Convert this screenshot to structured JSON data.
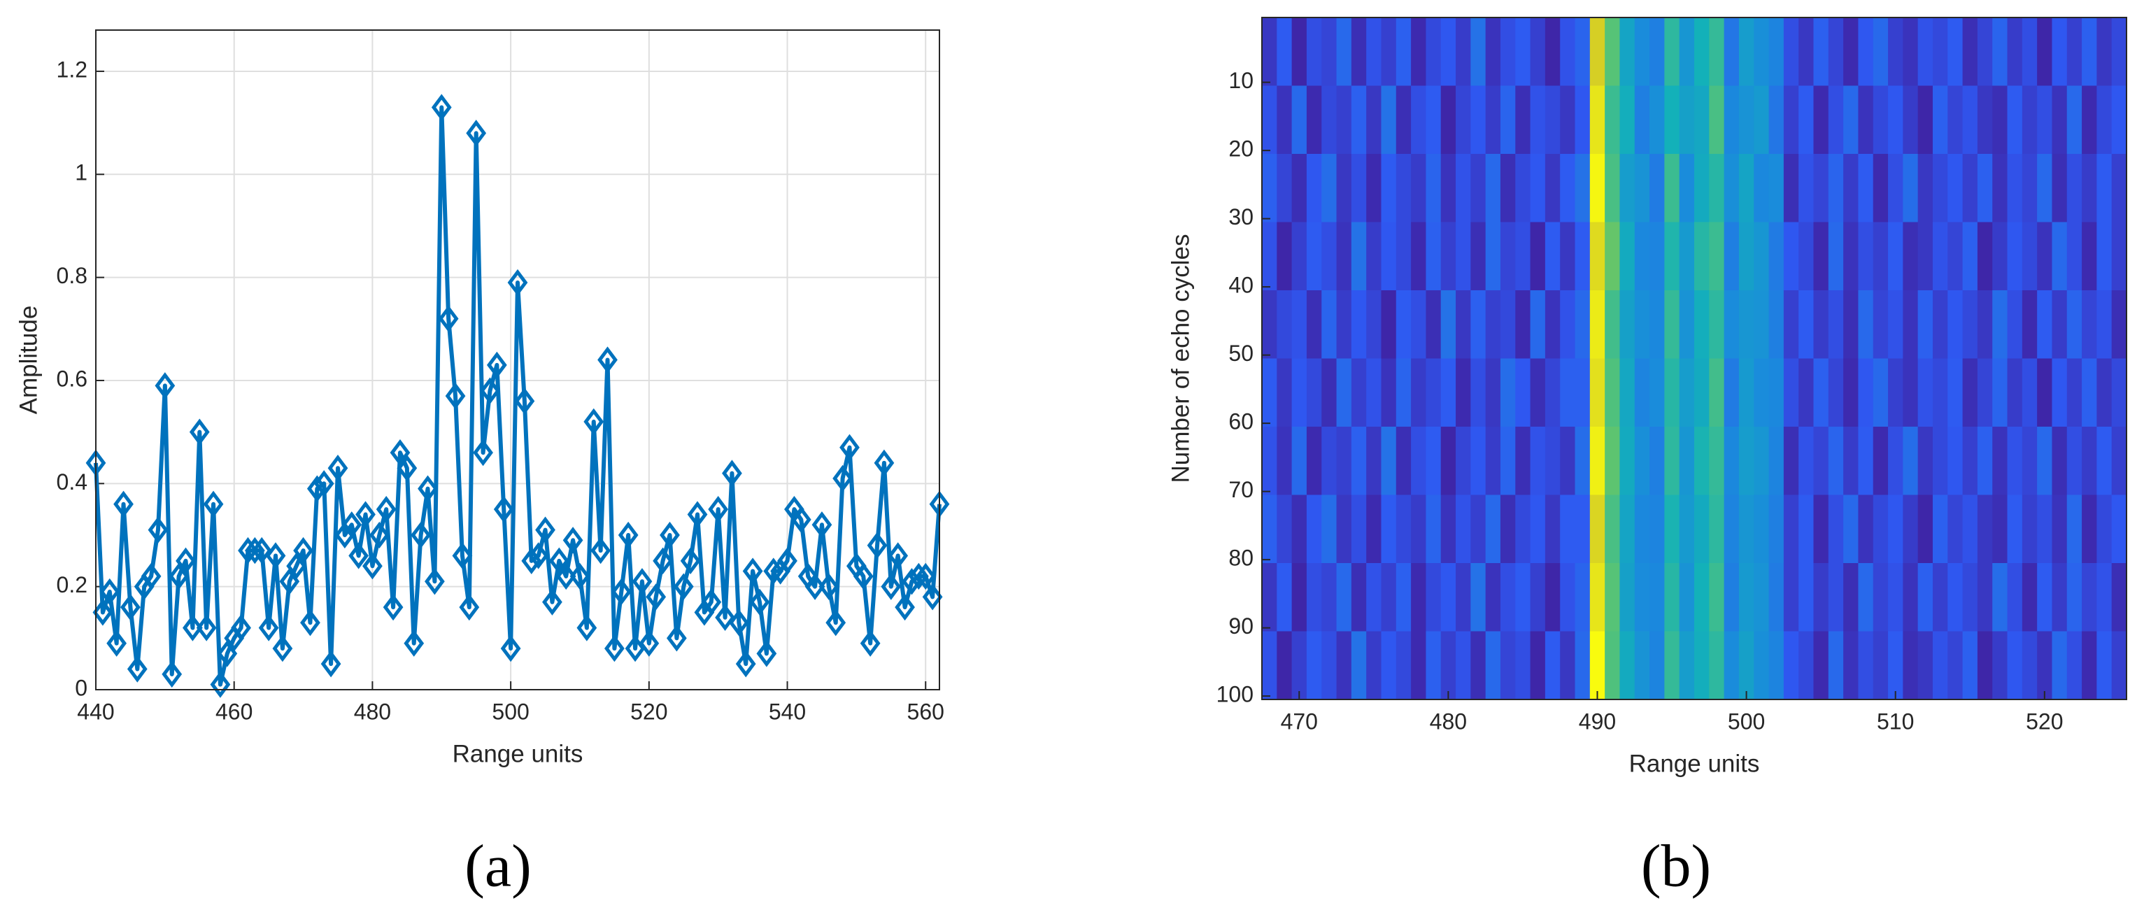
{
  "chart_data": [
    {
      "type": "line",
      "label": "(a)",
      "xlabel": "Range units",
      "ylabel": "Amplitude",
      "x": [
        440,
        441,
        442,
        443,
        444,
        445,
        446,
        447,
        448,
        449,
        450,
        451,
        452,
        453,
        454,
        455,
        456,
        457,
        458,
        459,
        460,
        461,
        462,
        463,
        464,
        465,
        466,
        467,
        468,
        469,
        470,
        471,
        472,
        473,
        474,
        475,
        476,
        477,
        478,
        479,
        480,
        481,
        482,
        483,
        484,
        485,
        486,
        487,
        488,
        489,
        490,
        491,
        492,
        493,
        494,
        495,
        496,
        497,
        498,
        499,
        500,
        501,
        502,
        503,
        504,
        505,
        506,
        507,
        508,
        509,
        510,
        511,
        512,
        513,
        514,
        515,
        516,
        517,
        518,
        519,
        520,
        521,
        522,
        523,
        524,
        525,
        526,
        527,
        528,
        529,
        530,
        531,
        532,
        533,
        534,
        535,
        536,
        537,
        538,
        539,
        540,
        541,
        542,
        543,
        544,
        545,
        546,
        547,
        548,
        549,
        550,
        551,
        552,
        553,
        554,
        555,
        556,
        557,
        558,
        559,
        560,
        561,
        562
      ],
      "series": [
        {
          "color": "#0072bd",
          "marker": "diamond",
          "values": [
            0.44,
            0.15,
            0.19,
            0.09,
            0.36,
            0.16,
            0.04,
            0.2,
            0.22,
            0.31,
            0.59,
            0.03,
            0.22,
            0.25,
            0.12,
            0.5,
            0.12,
            0.36,
            0.01,
            0.07,
            0.1,
            0.12,
            0.27,
            0.27,
            0.27,
            0.12,
            0.26,
            0.08,
            0.21,
            0.24,
            0.27,
            0.13,
            0.39,
            0.4,
            0.05,
            0.43,
            0.3,
            0.32,
            0.26,
            0.34,
            0.24,
            0.3,
            0.35,
            0.16,
            0.46,
            0.43,
            0.09,
            0.3,
            0.39,
            0.21,
            1.13,
            0.72,
            0.57,
            0.26,
            0.16,
            1.08,
            0.46,
            0.58,
            0.63,
            0.35,
            0.08,
            0.79,
            0.56,
            0.25,
            0.26,
            0.31,
            0.17,
            0.25,
            0.22,
            0.29,
            0.22,
            0.12,
            0.52,
            0.27,
            0.64,
            0.08,
            0.19,
            0.3,
            0.08,
            0.21,
            0.09,
            0.18,
            0.25,
            0.3,
            0.1,
            0.2,
            0.25,
            0.34,
            0.15,
            0.17,
            0.35,
            0.14,
            0.42,
            0.13,
            0.05,
            0.23,
            0.17,
            0.07,
            0.23,
            0.23,
            0.25,
            0.35,
            0.33,
            0.22,
            0.2,
            0.32,
            0.2,
            0.13,
            0.41,
            0.47,
            0.24,
            0.22,
            0.09,
            0.28,
            0.44,
            0.2,
            0.26,
            0.16,
            0.21,
            0.22,
            0.22,
            0.18,
            0.36
          ]
        }
      ],
      "xlim": [
        440,
        562
      ],
      "ylim": [
        0,
        1.28
      ],
      "xticks": [
        440,
        460,
        480,
        500,
        520,
        540,
        560
      ],
      "yticks": [
        0,
        0.2,
        0.4,
        0.6,
        0.8,
        1,
        1.2
      ],
      "grid": true
    },
    {
      "type": "heatmap",
      "label": "(b)",
      "xlabel": "Range units",
      "ylabel": "Number of echo cycles",
      "x": [
        468,
        469,
        470,
        471,
        472,
        473,
        474,
        475,
        476,
        477,
        478,
        479,
        480,
        481,
        482,
        483,
        484,
        485,
        486,
        487,
        488,
        489,
        490,
        491,
        492,
        493,
        494,
        495,
        496,
        497,
        498,
        499,
        500,
        501,
        502,
        503,
        504,
        505,
        506,
        507,
        508,
        509,
        510,
        511,
        512,
        513,
        514,
        515,
        516,
        517,
        518,
        519,
        520,
        521,
        522,
        523,
        524,
        525
      ],
      "y_bins": [
        0.5,
        10.5,
        20.5,
        30.5,
        40.5,
        50.5,
        60.5,
        70.5,
        80.5,
        90.5,
        100.5
      ],
      "values": [
        [
          0.22,
          0.3,
          0.18,
          0.27,
          0.25,
          0.33,
          0.2,
          0.28,
          0.24,
          0.31,
          0.19,
          0.26,
          0.29,
          0.23,
          0.35,
          0.21,
          0.27,
          0.3,
          0.24,
          0.18,
          0.28,
          0.32,
          0.78,
          0.62,
          0.48,
          0.41,
          0.38,
          0.56,
          0.44,
          0.52,
          0.57,
          0.36,
          0.46,
          0.42,
          0.39,
          0.27,
          0.22,
          0.31,
          0.25,
          0.19,
          0.29,
          0.33,
          0.24,
          0.21,
          0.28,
          0.26,
          0.3,
          0.2,
          0.25,
          0.32,
          0.23,
          0.27,
          0.18,
          0.29,
          0.24,
          0.31,
          0.22,
          0.26
        ],
        [
          0.28,
          0.21,
          0.33,
          0.19,
          0.26,
          0.24,
          0.31,
          0.22,
          0.35,
          0.2,
          0.27,
          0.3,
          0.18,
          0.25,
          0.29,
          0.23,
          0.32,
          0.2,
          0.28,
          0.26,
          0.22,
          0.29,
          0.82,
          0.58,
          0.51,
          0.38,
          0.42,
          0.52,
          0.47,
          0.49,
          0.6,
          0.4,
          0.43,
          0.45,
          0.36,
          0.24,
          0.3,
          0.19,
          0.27,
          0.33,
          0.21,
          0.26,
          0.29,
          0.23,
          0.18,
          0.31,
          0.25,
          0.28,
          0.22,
          0.2,
          0.3,
          0.24,
          0.27,
          0.21,
          0.33,
          0.19,
          0.26,
          0.29
        ],
        [
          0.31,
          0.25,
          0.2,
          0.29,
          0.34,
          0.22,
          0.27,
          0.19,
          0.3,
          0.26,
          0.23,
          0.32,
          0.21,
          0.28,
          0.24,
          0.33,
          0.2,
          0.26,
          0.29,
          0.22,
          0.3,
          0.35,
          0.85,
          0.6,
          0.46,
          0.43,
          0.37,
          0.58,
          0.41,
          0.5,
          0.55,
          0.42,
          0.48,
          0.4,
          0.41,
          0.2,
          0.28,
          0.25,
          0.32,
          0.23,
          0.3,
          0.19,
          0.27,
          0.34,
          0.22,
          0.26,
          0.29,
          0.24,
          0.31,
          0.21,
          0.28,
          0.25,
          0.33,
          0.2,
          0.27,
          0.23,
          0.3,
          0.24
        ],
        [
          0.28,
          0.18,
          0.24,
          0.3,
          0.27,
          0.21,
          0.35,
          0.23,
          0.29,
          0.26,
          0.19,
          0.31,
          0.24,
          0.28,
          0.2,
          0.33,
          0.25,
          0.27,
          0.18,
          0.3,
          0.22,
          0.3,
          0.8,
          0.64,
          0.5,
          0.4,
          0.39,
          0.54,
          0.45,
          0.55,
          0.58,
          0.38,
          0.47,
          0.44,
          0.37,
          0.29,
          0.26,
          0.19,
          0.33,
          0.21,
          0.27,
          0.24,
          0.3,
          0.2,
          0.22,
          0.28,
          0.25,
          0.31,
          0.18,
          0.23,
          0.29,
          0.26,
          0.21,
          0.33,
          0.27,
          0.19,
          0.3,
          0.24
        ],
        [
          0.22,
          0.26,
          0.28,
          0.2,
          0.32,
          0.23,
          0.29,
          0.25,
          0.18,
          0.3,
          0.27,
          0.2,
          0.35,
          0.22,
          0.31,
          0.24,
          0.26,
          0.19,
          0.33,
          0.21,
          0.28,
          0.33,
          0.83,
          0.59,
          0.47,
          0.42,
          0.4,
          0.57,
          0.43,
          0.51,
          0.56,
          0.41,
          0.44,
          0.43,
          0.38,
          0.24,
          0.3,
          0.23,
          0.27,
          0.2,
          0.33,
          0.25,
          0.28,
          0.21,
          0.31,
          0.24,
          0.29,
          0.26,
          0.22,
          0.34,
          0.27,
          0.19,
          0.3,
          0.23,
          0.32,
          0.25,
          0.28,
          0.2
        ],
        [
          0.3,
          0.22,
          0.29,
          0.26,
          0.2,
          0.33,
          0.24,
          0.28,
          0.21,
          0.32,
          0.23,
          0.26,
          0.3,
          0.19,
          0.27,
          0.22,
          0.34,
          0.29,
          0.2,
          0.25,
          0.31,
          0.31,
          0.81,
          0.61,
          0.49,
          0.39,
          0.41,
          0.55,
          0.46,
          0.5,
          0.59,
          0.37,
          0.45,
          0.41,
          0.4,
          0.27,
          0.22,
          0.31,
          0.25,
          0.19,
          0.29,
          0.33,
          0.24,
          0.21,
          0.28,
          0.26,
          0.3,
          0.2,
          0.25,
          0.32,
          0.23,
          0.27,
          0.18,
          0.29,
          0.24,
          0.31,
          0.22,
          0.26
        ],
        [
          0.28,
          0.21,
          0.33,
          0.19,
          0.26,
          0.24,
          0.31,
          0.22,
          0.35,
          0.2,
          0.27,
          0.3,
          0.18,
          0.25,
          0.29,
          0.23,
          0.32,
          0.2,
          0.28,
          0.26,
          0.22,
          0.34,
          0.84,
          0.63,
          0.5,
          0.42,
          0.38,
          0.56,
          0.44,
          0.53,
          0.57,
          0.4,
          0.46,
          0.44,
          0.39,
          0.2,
          0.28,
          0.25,
          0.32,
          0.23,
          0.3,
          0.19,
          0.27,
          0.34,
          0.22,
          0.26,
          0.29,
          0.24,
          0.31,
          0.21,
          0.28,
          0.25,
          0.33,
          0.2,
          0.27,
          0.23,
          0.3,
          0.24
        ],
        [
          0.31,
          0.25,
          0.2,
          0.29,
          0.34,
          0.22,
          0.27,
          0.19,
          0.3,
          0.26,
          0.23,
          0.32,
          0.21,
          0.28,
          0.24,
          0.33,
          0.2,
          0.26,
          0.29,
          0.22,
          0.3,
          0.3,
          0.79,
          0.6,
          0.48,
          0.4,
          0.39,
          0.53,
          0.45,
          0.5,
          0.56,
          0.39,
          0.44,
          0.42,
          0.38,
          0.24,
          0.3,
          0.19,
          0.27,
          0.33,
          0.21,
          0.26,
          0.29,
          0.23,
          0.18,
          0.31,
          0.25,
          0.28,
          0.22,
          0.2,
          0.3,
          0.24,
          0.27,
          0.21,
          0.33,
          0.19,
          0.26,
          0.29
        ],
        [
          0.22,
          0.3,
          0.18,
          0.27,
          0.25,
          0.33,
          0.2,
          0.28,
          0.24,
          0.31,
          0.19,
          0.26,
          0.29,
          0.23,
          0.35,
          0.21,
          0.27,
          0.3,
          0.24,
          0.18,
          0.28,
          0.32,
          0.82,
          0.62,
          0.47,
          0.41,
          0.4,
          0.55,
          0.43,
          0.52,
          0.58,
          0.38,
          0.45,
          0.43,
          0.37,
          0.24,
          0.3,
          0.23,
          0.27,
          0.2,
          0.33,
          0.25,
          0.28,
          0.21,
          0.31,
          0.24,
          0.29,
          0.26,
          0.22,
          0.34,
          0.27,
          0.19,
          0.3,
          0.23,
          0.32,
          0.25,
          0.28,
          0.2
        ],
        [
          0.28,
          0.18,
          0.24,
          0.3,
          0.27,
          0.21,
          0.35,
          0.23,
          0.29,
          0.26,
          0.19,
          0.31,
          0.24,
          0.28,
          0.2,
          0.33,
          0.25,
          0.27,
          0.18,
          0.3,
          0.22,
          0.33,
          0.86,
          0.61,
          0.5,
          0.43,
          0.39,
          0.57,
          0.46,
          0.51,
          0.56,
          0.41,
          0.47,
          0.42,
          0.39,
          0.29,
          0.26,
          0.19,
          0.33,
          0.21,
          0.27,
          0.24,
          0.3,
          0.2,
          0.22,
          0.28,
          0.25,
          0.31,
          0.18,
          0.23,
          0.29,
          0.26,
          0.21,
          0.33,
          0.27,
          0.19,
          0.3,
          0.24
        ]
      ],
      "colormap": [
        "#3e26a8",
        "#2f58f2",
        "#1a8bdc",
        "#13b1b9",
        "#5fc56e",
        "#c7bd2f",
        "#f9fb0e"
      ],
      "xlim": [
        467.5,
        525.5
      ],
      "ylim": [
        0.5,
        100.5
      ],
      "y_reversed": true,
      "xticks": [
        470,
        480,
        490,
        500,
        510,
        520
      ],
      "yticks": [
        10,
        20,
        30,
        40,
        50,
        60,
        70,
        80,
        90,
        100
      ],
      "grid": false
    }
  ]
}
